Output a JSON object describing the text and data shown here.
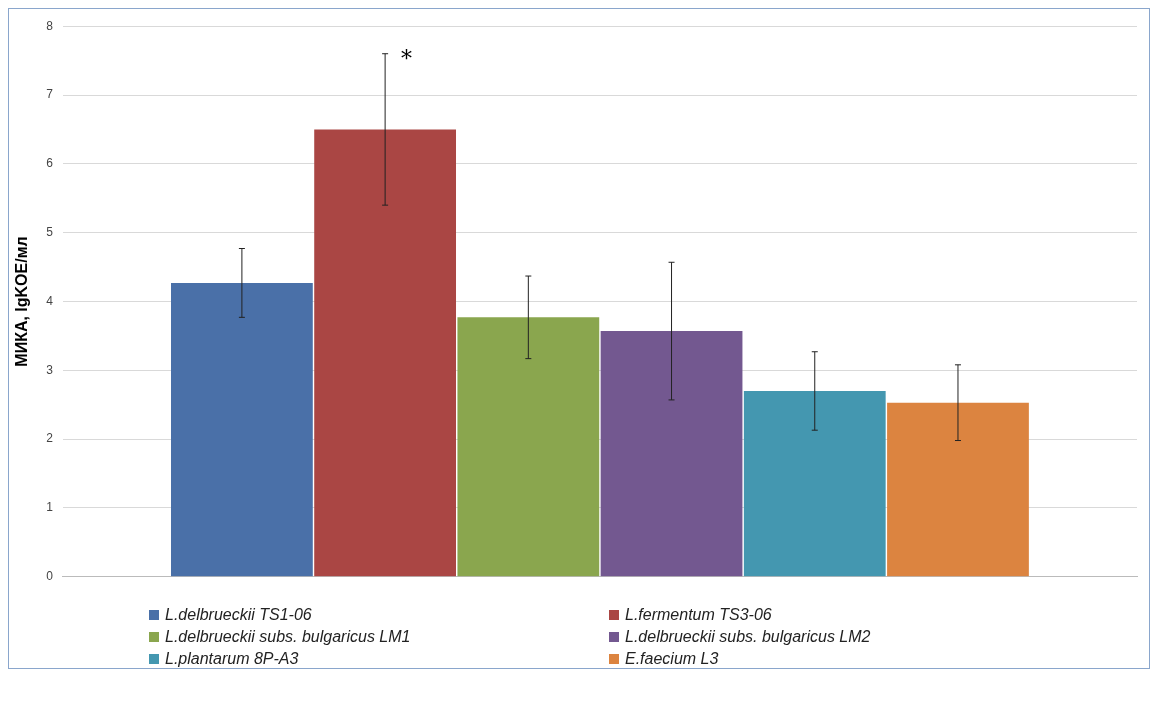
{
  "chart_data": {
    "type": "bar",
    "ylabel": "МИКА, lgKOE/мл",
    "categories": [
      null
    ],
    "series": [
      {
        "name": "L.delbrueckii TS1-06",
        "color": "#4a70a8",
        "values": [
          4.27
        ],
        "errors": [
          0.5
        ]
      },
      {
        "name": "L.fermentum TS3-06",
        "color": "#aa4644",
        "values": [
          6.5
        ],
        "errors": [
          1.1
        ]
      },
      {
        "name": "L.delbrueckii subs. bulgaricus LM1",
        "color": "#8aa64e",
        "values": [
          3.77
        ],
        "errors": [
          0.6
        ]
      },
      {
        "name": "L.delbrueckii subs. bulgaricus LM2",
        "color": "#735890",
        "values": [
          3.57
        ],
        "errors": [
          1.0
        ]
      },
      {
        "name": "L.plantarum 8P-A3",
        "color": "#4497b0",
        "values": [
          2.7
        ],
        "errors": [
          0.57
        ]
      },
      {
        "name": "E.faecium L3",
        "color": "#dc8440",
        "values": [
          2.53
        ],
        "errors": [
          0.55
        ]
      }
    ],
    "ylim": [
      0,
      8
    ],
    "yticks": [
      0,
      1,
      2,
      3,
      4,
      5,
      6,
      7,
      8
    ],
    "grid": "y",
    "legend": "bottom",
    "annotations": [
      "*"
    ]
  }
}
